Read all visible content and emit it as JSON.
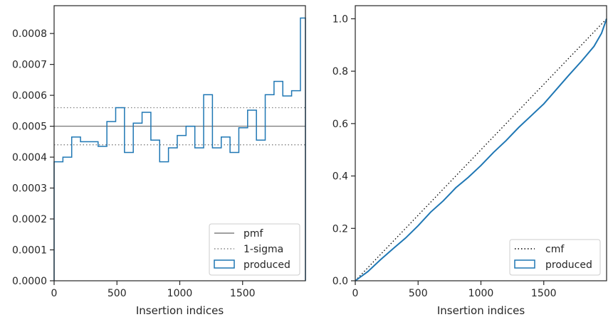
{
  "chart_data": [
    {
      "type": "step-histogram",
      "xlabel": "Insertion indices",
      "ylabel": "",
      "xlim": [
        0,
        2000
      ],
      "ylim": [
        0,
        0.00089
      ],
      "xticks": [
        0,
        500,
        1000,
        1500
      ],
      "xtick_labels": [
        "0",
        "500",
        "1000",
        "1500"
      ],
      "yticks": [
        0,
        0.0001,
        0.0002,
        0.0003,
        0.0004,
        0.0005,
        0.0006,
        0.0007,
        0.0008
      ],
      "ytick_labels": [
        "0.0000",
        "0.0001",
        "0.0002",
        "0.0003",
        "0.0004",
        "0.0005",
        "0.0006",
        "0.0007",
        "0.0008"
      ],
      "bin_edges": [
        0,
        70,
        140,
        210,
        280,
        350,
        420,
        490,
        560,
        630,
        700,
        770,
        840,
        910,
        980,
        1050,
        1120,
        1190,
        1260,
        1330,
        1400,
        1470,
        1540,
        1610,
        1680,
        1750,
        1820,
        1890,
        1960,
        2000
      ],
      "series": [
        {
          "name": "produced",
          "color": "#1f77b4",
          "values": [
            0.000385,
            0.0004,
            0.000465,
            0.00045,
            0.00045,
            0.000435,
            0.000515,
            0.00056,
            0.000415,
            0.00051,
            0.000545,
            0.000455,
            0.000385,
            0.00043,
            0.00047,
            0.0005,
            0.00043,
            0.000602,
            0.00043,
            0.000465,
            0.000415,
            0.000495,
            0.000552,
            0.000455,
            0.000602,
            0.000645,
            0.000598,
            0.000615,
            0.00085
          ]
        }
      ],
      "reference_lines": [
        {
          "name": "pmf",
          "value": 0.0005,
          "style": "solid",
          "color": "#808080"
        },
        {
          "name": "1-sigma",
          "values": [
            0.00044,
            0.00056
          ],
          "style": "dotted",
          "color": "#808080"
        }
      ],
      "legend": {
        "placement": "lower-right",
        "entries": [
          "pmf",
          "1-sigma",
          "produced"
        ]
      },
      "grid": false
    },
    {
      "type": "line",
      "xlabel": "Insertion indices",
      "ylabel": "",
      "xlim": [
        0,
        2000
      ],
      "ylim": [
        0,
        1.05
      ],
      "xticks": [
        0,
        500,
        1000,
        1500
      ],
      "xtick_labels": [
        "0",
        "500",
        "1000",
        "1500"
      ],
      "yticks": [
        0,
        0.2,
        0.4,
        0.6,
        0.8,
        1.0
      ],
      "ytick_labels": [
        "0.0",
        "0.2",
        "0.4",
        "0.6",
        "0.8",
        "1.0"
      ],
      "series": [
        {
          "name": "cmf",
          "style": "dotted",
          "color": "#000000",
          "x": [
            0,
            2000
          ],
          "y": [
            0,
            1.0
          ]
        },
        {
          "name": "produced",
          "style": "solid",
          "color": "#1f77b4",
          "x": [
            0,
            100,
            200,
            300,
            400,
            500,
            600,
            700,
            800,
            900,
            1000,
            1100,
            1200,
            1300,
            1400,
            1500,
            1600,
            1700,
            1800,
            1900,
            1960,
            2000
          ],
          "y": [
            0,
            0.035,
            0.08,
            0.122,
            0.163,
            0.21,
            0.262,
            0.305,
            0.355,
            0.395,
            0.44,
            0.49,
            0.535,
            0.585,
            0.63,
            0.675,
            0.73,
            0.785,
            0.838,
            0.895,
            0.945,
            1.0
          ]
        }
      ],
      "legend": {
        "placement": "lower-right",
        "entries": [
          "cmf",
          "produced"
        ]
      },
      "grid": false
    }
  ]
}
